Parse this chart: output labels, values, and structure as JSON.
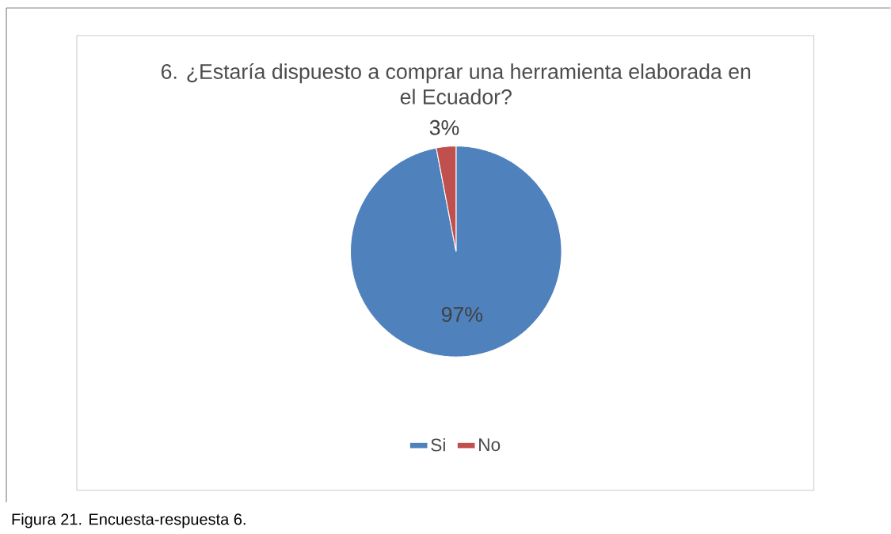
{
  "chart_data": {
    "type": "pie",
    "title": "6. ¿Estaría dispuesto a comprar una herramienta elaborada en el Ecuador?",
    "categories": [
      "Si",
      "No"
    ],
    "values": [
      97,
      3
    ],
    "colors": [
      "#4f81bd",
      "#c0504d"
    ],
    "value_labels": [
      "97%",
      "3%"
    ],
    "legend": "bottom",
    "annotations": [
      "Figura 21. Encuesta-respuesta 6."
    ]
  }
}
